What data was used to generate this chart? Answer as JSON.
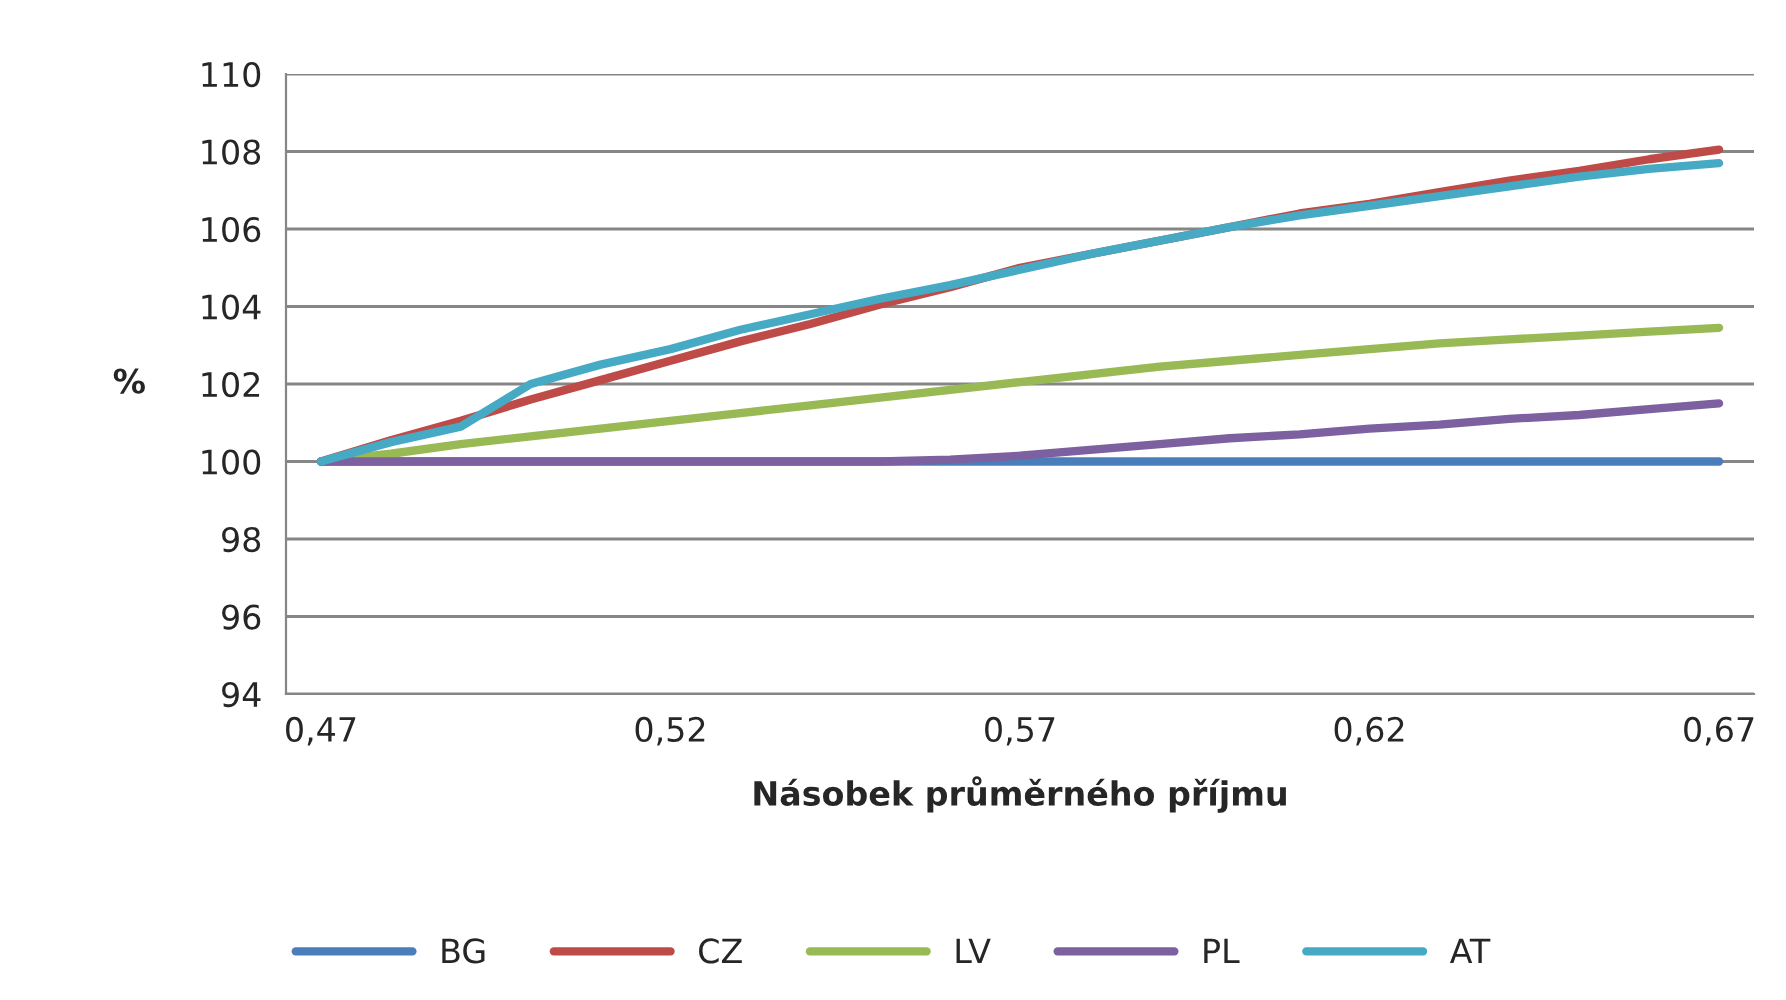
{
  "chart_data": {
    "type": "line",
    "xlabel": "Násobek průměrného příjmu",
    "ylabel": "%",
    "categories": [
      "0,47",
      null,
      null,
      null,
      null,
      "0,52",
      null,
      null,
      null,
      null,
      "0,57",
      null,
      null,
      null,
      null,
      "0,62",
      null,
      null,
      null,
      null,
      "0,67"
    ],
    "ylim": [
      94,
      110
    ],
    "yticks": [
      94,
      96,
      98,
      100,
      102,
      104,
      106,
      108,
      110
    ],
    "grid": "y",
    "legend": "bottom",
    "marker": "none",
    "line_style": "solid",
    "series": [
      {
        "name": "BG",
        "color": "#4a7ebb",
        "values": [
          100,
          100,
          100,
          100,
          100,
          100,
          100,
          100,
          100,
          100,
          100,
          100,
          100,
          100,
          100,
          100,
          100,
          100,
          100,
          100,
          100
        ]
      },
      {
        "name": "CZ",
        "color": "#be4b48",
        "values": [
          100,
          100.55,
          101.05,
          101.6,
          102.1,
          102.6,
          103.1,
          103.55,
          104.05,
          104.5,
          105.0,
          null,
          null,
          106.05,
          106.4,
          106.65,
          106.95,
          107.25,
          107.5,
          107.8,
          108.05
        ]
      },
      {
        "name": "LV",
        "color": "#98b954",
        "values": [
          100,
          100.2,
          100.45,
          100.65,
          100.85,
          101.05,
          101.25,
          101.45,
          101.65,
          101.85,
          102.05,
          102.25,
          102.45,
          102.6,
          102.75,
          102.9,
          103.05,
          103.15,
          103.25,
          103.35,
          103.45
        ]
      },
      {
        "name": "PL",
        "color": "#7d60a0",
        "values": [
          100,
          100,
          100,
          100,
          100,
          100,
          100,
          100,
          100,
          100.05,
          100.15,
          100.3,
          100.45,
          100.6,
          100.7,
          100.85,
          100.95,
          101.1,
          101.2,
          101.35,
          101.5
        ]
      },
      {
        "name": "AT",
        "color": "#46aac5",
        "values": [
          100,
          100.5,
          100.9,
          102.0,
          102.5,
          102.9,
          103.4,
          103.8,
          104.2,
          104.55,
          104.95,
          105.35,
          105.7,
          106.05,
          106.35,
          106.6,
          106.85,
          107.1,
          107.35,
          107.55,
          107.7
        ]
      }
    ]
  }
}
